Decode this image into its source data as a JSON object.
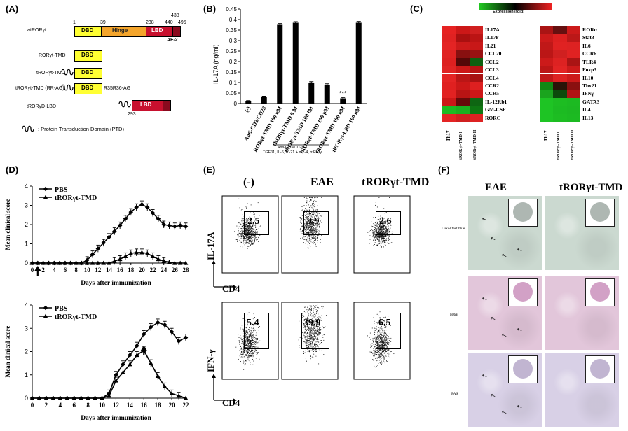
{
  "panels": {
    "A": "(A)",
    "B": "(B)",
    "C": "(C)",
    "D": "(D)",
    "E": "(E)",
    "F": "(F)"
  },
  "panel_a": {
    "constructs": [
      {
        "label": "wtRORγt"
      },
      {
        "label": "RORγt-TMD"
      },
      {
        "label": "tRORγt-TMD"
      },
      {
        "label": "tRORγt-TMD (RR-AG)",
        "mutation": "R35R36-AG"
      },
      {
        "label": "tRORγD-LBD"
      }
    ],
    "positions": [
      "1",
      "39",
      "238",
      "440",
      "438",
      "495",
      "293"
    ],
    "domains": {
      "dbd": "DBD",
      "hinge": "Hinge",
      "lbd": "LBD",
      "af2": "AF-2"
    },
    "legend": ": Protein Transduction Domain (PTD)",
    "colors": {
      "dbd": "#ffff33",
      "hinge": "#f4a52c",
      "lbd": "#c8102e"
    }
  },
  "chart_data": [
    {
      "type": "bar",
      "panel": "B",
      "ylabel": "IL-17A (ng/ml)",
      "ylim": [
        0,
        0.45
      ],
      "yticks": [
        0,
        0.05,
        0.1,
        0.15,
        0.2,
        0.25,
        0.3,
        0.35,
        0.4,
        0.45
      ],
      "categories": [
        "(-)",
        "Anti-CD3/CD28",
        "RORγt-TMD 100 nM",
        "tRORγt-TMD 0 M",
        "tRORγt-TMD 100 fM",
        "tRORγt-TMD 100 pM",
        "tRORγt-TMD 100 nM",
        "tRORγt-LBD 100 nM"
      ],
      "values": [
        0.012,
        0.032,
        0.375,
        0.385,
        0.1,
        0.09,
        0.025,
        0.385
      ],
      "errors": [
        0.002,
        0.003,
        0.006,
        0.005,
        0.004,
        0.004,
        0.004,
        0.006
      ],
      "significance": {
        "index": 6,
        "label": "***"
      },
      "footnote_lines": [
        "Anti-CD3/CD28 +",
        "TGFβ1, IL-6, IL-21 + αIL-4, αIFN-γ"
      ]
    },
    {
      "type": "heatmap",
      "panel": "C",
      "legend_title": "Expression (fold)",
      "left": {
        "rows": [
          "IL17A",
          "IL17F",
          "IL21",
          "CCL20",
          "CCL2",
          "CCL3",
          "CCL4",
          "CCR2",
          "CCR5",
          "IL-12Rb1",
          "GM-CSF",
          "RORC"
        ],
        "columns": [
          "Th17",
          "tRORγt-TMD I",
          "tRORγt-TMD II"
        ],
        "colors": [
          [
            "#e62222",
            "#cc1818",
            "#d02020"
          ],
          [
            "#e02222",
            "#aa1010",
            "#bb1414"
          ],
          [
            "#e42424",
            "#cc1a1a",
            "#c81818"
          ],
          [
            "#e02222",
            "#881010",
            "#991212"
          ],
          [
            "#dd2020",
            "#550808",
            "#0e6010"
          ],
          [
            "#e02424",
            "#cc1818",
            "#b81414"
          ],
          [
            "#e42424",
            "#bb1616",
            "#a81212"
          ],
          [
            "#e02020",
            "#cc1818",
            "#dd2020"
          ],
          [
            "#e22222",
            "#b81414",
            "#cc1818"
          ],
          [
            "#cc1818",
            "#660a0a",
            "#0e6612"
          ],
          [
            "#1cbb22",
            "#1ab020",
            "#0e7712"
          ],
          [
            "#e42424",
            "#d02020",
            "#dd2222"
          ]
        ]
      },
      "right": {
        "rows": [
          "RORα",
          "Stat3",
          "IL6",
          "CCR6",
          "TLR4",
          "Foxp3",
          "IL10",
          "Tbx21",
          "IFNγ",
          "GATA3",
          "IL4",
          "IL13"
        ],
        "columns": [
          "Th17",
          "tRORγt-TMD I",
          "tRORγt-TMD II"
        ],
        "colors": [
          [
            "#aa1414",
            "#661010",
            "#cc1a1a"
          ],
          [
            "#cc1a1a",
            "#dd2020",
            "#bb1818"
          ],
          [
            "#c01818",
            "#e02222",
            "#dd2222"
          ],
          [
            "#bb1616",
            "#d02020",
            "#e02222"
          ],
          [
            "#cc1a1a",
            "#dd2222",
            "#aa1414"
          ],
          [
            "#bb1616",
            "#e22424",
            "#cc1a1a"
          ],
          [
            "#c01818",
            "#dd2222",
            "#cc1a1a"
          ],
          [
            "#118814",
            "#2a1408",
            "#8a1010"
          ],
          [
            "#1aa41e",
            "#0c4a0c",
            "#b01414"
          ],
          [
            "#1ec424",
            "#1dbd22",
            "#1cba22"
          ],
          [
            "#1ec424",
            "#1cbb22",
            "#1cb822"
          ],
          [
            "#1ec424",
            "#1dbd22",
            "#1cba22"
          ]
        ]
      }
    },
    {
      "type": "line",
      "panel": "D-top",
      "xlabel": "Days after immunization",
      "ylabel": "Mean clinical score",
      "ylim": [
        0,
        4
      ],
      "xticks": [
        0,
        2,
        4,
        6,
        8,
        10,
        12,
        14,
        16,
        18,
        20,
        22,
        24,
        26,
        28
      ],
      "series": [
        {
          "name": "PBS",
          "x": [
            0,
            1,
            2,
            3,
            4,
            5,
            6,
            7,
            8,
            9,
            10,
            11,
            12,
            13,
            14,
            15,
            16,
            17,
            18,
            19,
            20,
            21,
            22,
            23,
            24,
            25,
            26,
            27,
            28
          ],
          "y": [
            0,
            0,
            0,
            0,
            0,
            0,
            0,
            0,
            0,
            0,
            0.15,
            0.45,
            0.75,
            1.05,
            1.35,
            1.65,
            1.95,
            2.3,
            2.65,
            2.9,
            3.05,
            2.9,
            2.6,
            2.3,
            2.0,
            1.95,
            1.9,
            1.95,
            1.9
          ]
        },
        {
          "name": "tRORγt-TMD",
          "x": [
            0,
            1,
            2,
            3,
            4,
            5,
            6,
            7,
            8,
            9,
            10,
            11,
            12,
            13,
            14,
            15,
            16,
            17,
            18,
            19,
            20,
            21,
            22,
            23,
            24,
            25,
            26,
            27,
            28
          ],
          "y": [
            0,
            0,
            0,
            0,
            0,
            0,
            0,
            0,
            0,
            0,
            0,
            0,
            0,
            0,
            0,
            0.1,
            0.2,
            0.35,
            0.5,
            0.55,
            0.55,
            0.5,
            0.35,
            0.2,
            0.1,
            0.05,
            0,
            0,
            0
          ]
        }
      ],
      "arrow_day": 1
    },
    {
      "type": "line",
      "panel": "D-bottom",
      "xlabel": "Days after immunization",
      "ylabel": "Mean clinical score",
      "ylim": [
        0,
        4
      ],
      "xticks": [
        0,
        2,
        4,
        6,
        8,
        10,
        12,
        14,
        16,
        18,
        20,
        22
      ],
      "series": [
        {
          "name": "PBS",
          "x": [
            0,
            1,
            2,
            3,
            4,
            5,
            6,
            7,
            8,
            9,
            10,
            11,
            12,
            13,
            14,
            15,
            16,
            17,
            18,
            19,
            20,
            21,
            22
          ],
          "y": [
            0,
            0,
            0,
            0,
            0,
            0,
            0,
            0,
            0,
            0,
            0,
            0.2,
            1.0,
            1.45,
            1.85,
            2.25,
            2.75,
            3.05,
            3.25,
            3.15,
            2.85,
            2.45,
            2.6
          ]
        },
        {
          "name": "tRORγt-TMD",
          "x": [
            0,
            1,
            2,
            3,
            4,
            5,
            6,
            7,
            8,
            9,
            10,
            11,
            12,
            13,
            14,
            15,
            16,
            17,
            18,
            19,
            20,
            21,
            22
          ],
          "y": [
            0,
            0,
            0,
            0,
            0,
            0,
            0,
            0,
            0,
            0,
            0,
            0.1,
            0.75,
            1.1,
            1.45,
            1.85,
            2.05,
            1.5,
            0.95,
            0.5,
            0.2,
            0.1,
            0
          ]
        }
      ],
      "arrow_day": 16
    }
  ],
  "panel_e": {
    "columns": [
      "(-)",
      "EAE",
      "tRORγt-TMD"
    ],
    "rows": [
      {
        "ylabel": "IL-17A",
        "values": [
          "2.5",
          "9.9",
          "2.6"
        ]
      },
      {
        "ylabel": "IFN-γ",
        "values": [
          "5.4",
          "39.9",
          "6.5"
        ]
      }
    ],
    "xlabel": "CD4"
  },
  "panel_f": {
    "columns": [
      "EAE",
      "tRORγt-TMD"
    ],
    "rows": [
      {
        "stain": "Luxol fast blue",
        "color": "#cbd9d0"
      },
      {
        "stain": "H&E",
        "color": "#e2c6da"
      },
      {
        "stain": "PAS",
        "color": "#d8d0e6"
      }
    ]
  }
}
